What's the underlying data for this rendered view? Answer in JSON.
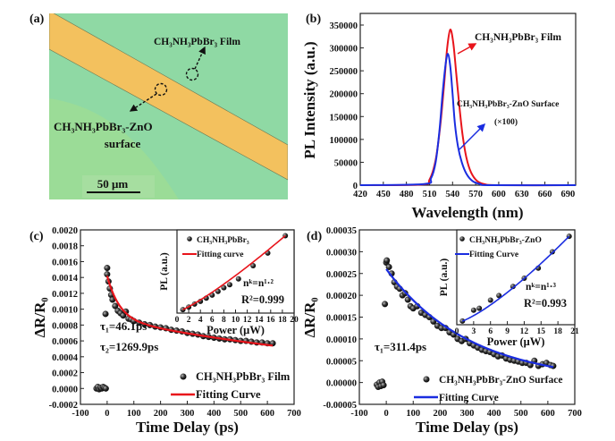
{
  "panel_labels": {
    "a": "(a)",
    "b": "(b)",
    "c": "(c)",
    "d": "(d)"
  },
  "micrograph": {
    "film_label": "CH₃NH₃PbBr₃ Film",
    "surface_label_line1": "CH₃NH₃PbBr₃-ZnO",
    "surface_label_line2": "surface",
    "scale_bar": "50 μm",
    "colors": {
      "background": "#8fd9a4",
      "stripe": "#f3c15e"
    }
  },
  "chart_data": [
    {
      "id": "b",
      "type": "line",
      "xlabel": "Wavelength (nm)",
      "ylabel": "PL Intensity (a.u.)",
      "xlim": [
        420,
        700
      ],
      "ylim": [
        0,
        350000
      ],
      "xticks": [
        420,
        450,
        480,
        510,
        540,
        570,
        600,
        630,
        660,
        690
      ],
      "yticks": [
        0,
        50000,
        100000,
        150000,
        200000,
        250000,
        300000,
        350000
      ],
      "grid": false,
      "series": [
        {
          "color": "#e8141b",
          "points": [
            [
              420,
              0
            ],
            [
              500,
              1500
            ],
            [
              510,
              12000
            ],
            [
              518,
              55000
            ],
            [
              524,
              130000
            ],
            [
              529,
              220000
            ],
            [
              533,
              300000
            ],
            [
              537,
              340000
            ],
            [
              541,
              310000
            ],
            [
              545,
              240000
            ],
            [
              549,
              170000
            ],
            [
              553,
              110000
            ],
            [
              558,
              60000
            ],
            [
              564,
              28000
            ],
            [
              572,
              9000
            ],
            [
              582,
              2000
            ],
            [
              600,
              0
            ],
            [
              700,
              0
            ]
          ]
        },
        {
          "color": "#1a2de0",
          "points": [
            [
              420,
              0
            ],
            [
              503,
              2500
            ],
            [
              512,
              15000
            ],
            [
              518,
              50000
            ],
            [
              523,
              120000
            ],
            [
              527,
              200000
            ],
            [
              531,
              265000
            ],
            [
              534,
              287000
            ],
            [
              537,
              260000
            ],
            [
              540,
              200000
            ],
            [
              543,
              135000
            ],
            [
              547,
              85000
            ],
            [
              552,
              50000
            ],
            [
              558,
              25000
            ],
            [
              566,
              9000
            ],
            [
              576,
              2500
            ],
            [
              590,
              0
            ],
            [
              700,
              0
            ]
          ]
        }
      ],
      "annotations": {
        "film": "CH₃NH₃PbBr₃ Film",
        "surface": "CH₃NH₃PbBr₃-ZnO Surface",
        "scale": "(×100)"
      }
    },
    {
      "id": "c",
      "type": "scatter",
      "xlabel": "Time Delay (ps)",
      "ylabel": "ΔR/R₀",
      "xlim": [
        -100,
        700
      ],
      "ylim": [
        -0.0002,
        0.002
      ],
      "xticks": [
        -100,
        0,
        100,
        200,
        300,
        400,
        500,
        600,
        700
      ],
      "yticks": [
        -0.0002,
        0.0,
        0.0002,
        0.0004,
        0.0006,
        0.0008,
        0.001,
        0.0012,
        0.0014,
        0.0016,
        0.0018,
        0.002
      ],
      "tick_decimals": 4,
      "legend": {
        "data": "CH₃NH₃PbBr₃ Film",
        "fit": "Fitting Curve",
        "position": "bottom-right"
      },
      "fit_color": "#e8141b",
      "tau": [
        "τ₁=46.1ps",
        "τ₂=1269.9ps"
      ],
      "fit": {
        "model": "biexponential",
        "A1": 0.00054,
        "tau1": 46.1,
        "A2": 0.00088,
        "tau2": 1269.9,
        "t_range": [
          0,
          620
        ]
      },
      "data": [
        [
          -40,
          0.0
        ],
        [
          -35,
          2e-05
        ],
        [
          -30,
          -1e-05
        ],
        [
          -25,
          1e-05
        ],
        [
          -20,
          0.0
        ],
        [
          -15,
          2e-05
        ],
        [
          -10,
          1e-05
        ],
        [
          -5,
          0.0
        ],
        [
          -6,
          0.00094
        ],
        [
          0,
          0.00152
        ],
        [
          0,
          0.00144
        ],
        [
          5,
          0.00135
        ],
        [
          10,
          0.00126
        ],
        [
          15,
          0.00118
        ],
        [
          20,
          0.00112
        ],
        [
          30,
          0.00104
        ],
        [
          40,
          0.00098
        ],
        [
          50,
          0.00095
        ],
        [
          60,
          0.00092
        ],
        [
          70,
          0.00097
        ],
        [
          80,
          0.00088
        ],
        [
          90,
          0.00087
        ],
        [
          100,
          0.00085
        ],
        [
          120,
          0.00083
        ],
        [
          140,
          0.00081
        ],
        [
          160,
          0.0008
        ],
        [
          180,
          0.00078
        ],
        [
          200,
          0.00077
        ],
        [
          220,
          0.00076
        ],
        [
          240,
          0.00074
        ],
        [
          260,
          0.00073
        ],
        [
          280,
          0.00072
        ],
        [
          300,
          0.0007
        ],
        [
          320,
          0.00069
        ],
        [
          340,
          0.00068
        ],
        [
          360,
          0.00066
        ],
        [
          380,
          0.00065
        ],
        [
          400,
          0.00064
        ],
        [
          420,
          0.00063
        ],
        [
          440,
          0.00062
        ],
        [
          460,
          0.00062
        ],
        [
          480,
          0.00061
        ],
        [
          500,
          0.0006
        ],
        [
          520,
          0.0006
        ],
        [
          540,
          0.00059
        ],
        [
          560,
          0.00058
        ],
        [
          580,
          0.00058
        ],
        [
          600,
          0.00057
        ],
        [
          620,
          0.00057
        ]
      ],
      "inset": {
        "xlabel": "Power (μW)",
        "ylabel": "PL (a.u.)",
        "xlim": [
          0,
          20
        ],
        "ylim": [
          0,
          36
        ],
        "xticks": [
          0,
          2,
          4,
          6,
          8,
          10,
          12,
          14,
          16,
          18,
          20
        ],
        "legend": {
          "data": "CH₃NH₃PbBr₃",
          "fit": "Fitting curve"
        },
        "equation": "nᵏ=n¹·²",
        "r2": "R²=0.999",
        "exponent": 1.2,
        "data": [
          [
            1,
            1.5
          ],
          [
            2,
            2.6
          ],
          [
            3,
            3.9
          ],
          [
            4,
            5.1
          ],
          [
            5,
            6.5
          ],
          [
            6,
            7.8
          ],
          [
            7,
            9.4
          ],
          [
            8,
            11
          ],
          [
            9,
            12.3
          ],
          [
            10.5,
            14.8
          ],
          [
            13,
            20.5
          ],
          [
            15.5,
            26
          ],
          [
            18.5,
            33.5
          ]
        ]
      }
    },
    {
      "id": "d",
      "type": "scatter",
      "xlabel": "Time Delay (ps)",
      "ylabel": "ΔR/R₀",
      "xlim": [
        -100,
        700
      ],
      "ylim": [
        -5e-05,
        0.00035
      ],
      "xticks": [
        -100,
        0,
        100,
        200,
        300,
        400,
        500,
        600,
        700
      ],
      "yticks": [
        -5e-05,
        0.0,
        5e-05,
        0.0001,
        0.00015,
        0.0002,
        0.00025,
        0.0003,
        0.00035
      ],
      "tick_decimals": 5,
      "legend": {
        "data": "CH₃NH₃PbBr₃-ZnO Surface",
        "fit": "Fitting Curve",
        "position": "bottom-right"
      },
      "fit_color": "#1a2de0",
      "tau": [
        "τ₁=311.4ps"
      ],
      "fit": {
        "model": "exponential",
        "A1": 0.00026,
        "tau1": 311.4,
        "t_range": [
          0,
          620
        ]
      },
      "data": [
        [
          -35,
          -5e-06
        ],
        [
          -30,
          -1e-05
        ],
        [
          -25,
          0.0
        ],
        [
          -20,
          -8e-06
        ],
        [
          -15,
          2e-06
        ],
        [
          -10,
          -6e-06
        ],
        [
          -5,
          0.00018
        ],
        [
          0,
          0.000275
        ],
        [
          2,
          0.00028
        ],
        [
          10,
          0.000265
        ],
        [
          20,
          0.00025
        ],
        [
          30,
          0.00023
        ],
        [
          40,
          0.00022
        ],
        [
          50,
          0.000215
        ],
        [
          60,
          0.0002
        ],
        [
          70,
          0.000205
        ],
        [
          80,
          0.00019
        ],
        [
          90,
          0.000175
        ],
        [
          100,
          0.00017
        ],
        [
          115,
          0.000175
        ],
        [
          130,
          0.00016
        ],
        [
          145,
          0.000155
        ],
        [
          160,
          0.00015
        ],
        [
          175,
          0.00014
        ],
        [
          190,
          0.00013
        ],
        [
          205,
          0.000125
        ],
        [
          220,
          0.000125
        ],
        [
          235,
          0.000115
        ],
        [
          250,
          0.00011
        ],
        [
          265,
          0.0001
        ],
        [
          280,
          9.5e-05
        ],
        [
          295,
          0.0001
        ],
        [
          310,
          9e-05
        ],
        [
          325,
          8.5e-05
        ],
        [
          340,
          8e-05
        ],
        [
          355,
          7.5e-05
        ],
        [
          370,
          7.2e-05
        ],
        [
          385,
          7e-05
        ],
        [
          400,
          6.5e-05
        ],
        [
          415,
          6e-05
        ],
        [
          430,
          6.2e-05
        ],
        [
          445,
          5.5e-05
        ],
        [
          460,
          5.2e-05
        ],
        [
          475,
          5e-05
        ],
        [
          490,
          4.8e-05
        ],
        [
          505,
          4.5e-05
        ],
        [
          520,
          4.5e-05
        ],
        [
          535,
          4e-05
        ],
        [
          550,
          5e-05
        ],
        [
          565,
          3.8e-05
        ],
        [
          580,
          4.2e-05
        ],
        [
          595,
          4.5e-05
        ],
        [
          610,
          4e-05
        ],
        [
          620,
          3.8e-05
        ]
      ],
      "inset": {
        "xlabel": "Power (μW)",
        "ylabel": "PL (a.u.)",
        "xlim": [
          0,
          21
        ],
        "ylim": [
          0,
          52
        ],
        "xticks": [
          0,
          3,
          6,
          9,
          12,
          15,
          18,
          21
        ],
        "legend": {
          "data": "CH₃NH₃PbBr₃-ZnO",
          "fit": "Fitting Curve"
        },
        "equation": "nᵏ=n¹·³",
        "r2": "R²=0.993",
        "exponent": 1.3,
        "data": [
          [
            1,
            2
          ],
          [
            3,
            8
          ],
          [
            4,
            9
          ],
          [
            6,
            13.5
          ],
          [
            7.5,
            16
          ],
          [
            10,
            21
          ],
          [
            12,
            25.5
          ],
          [
            14.5,
            31
          ],
          [
            17,
            40
          ],
          [
            20,
            48.5
          ]
        ]
      }
    }
  ]
}
